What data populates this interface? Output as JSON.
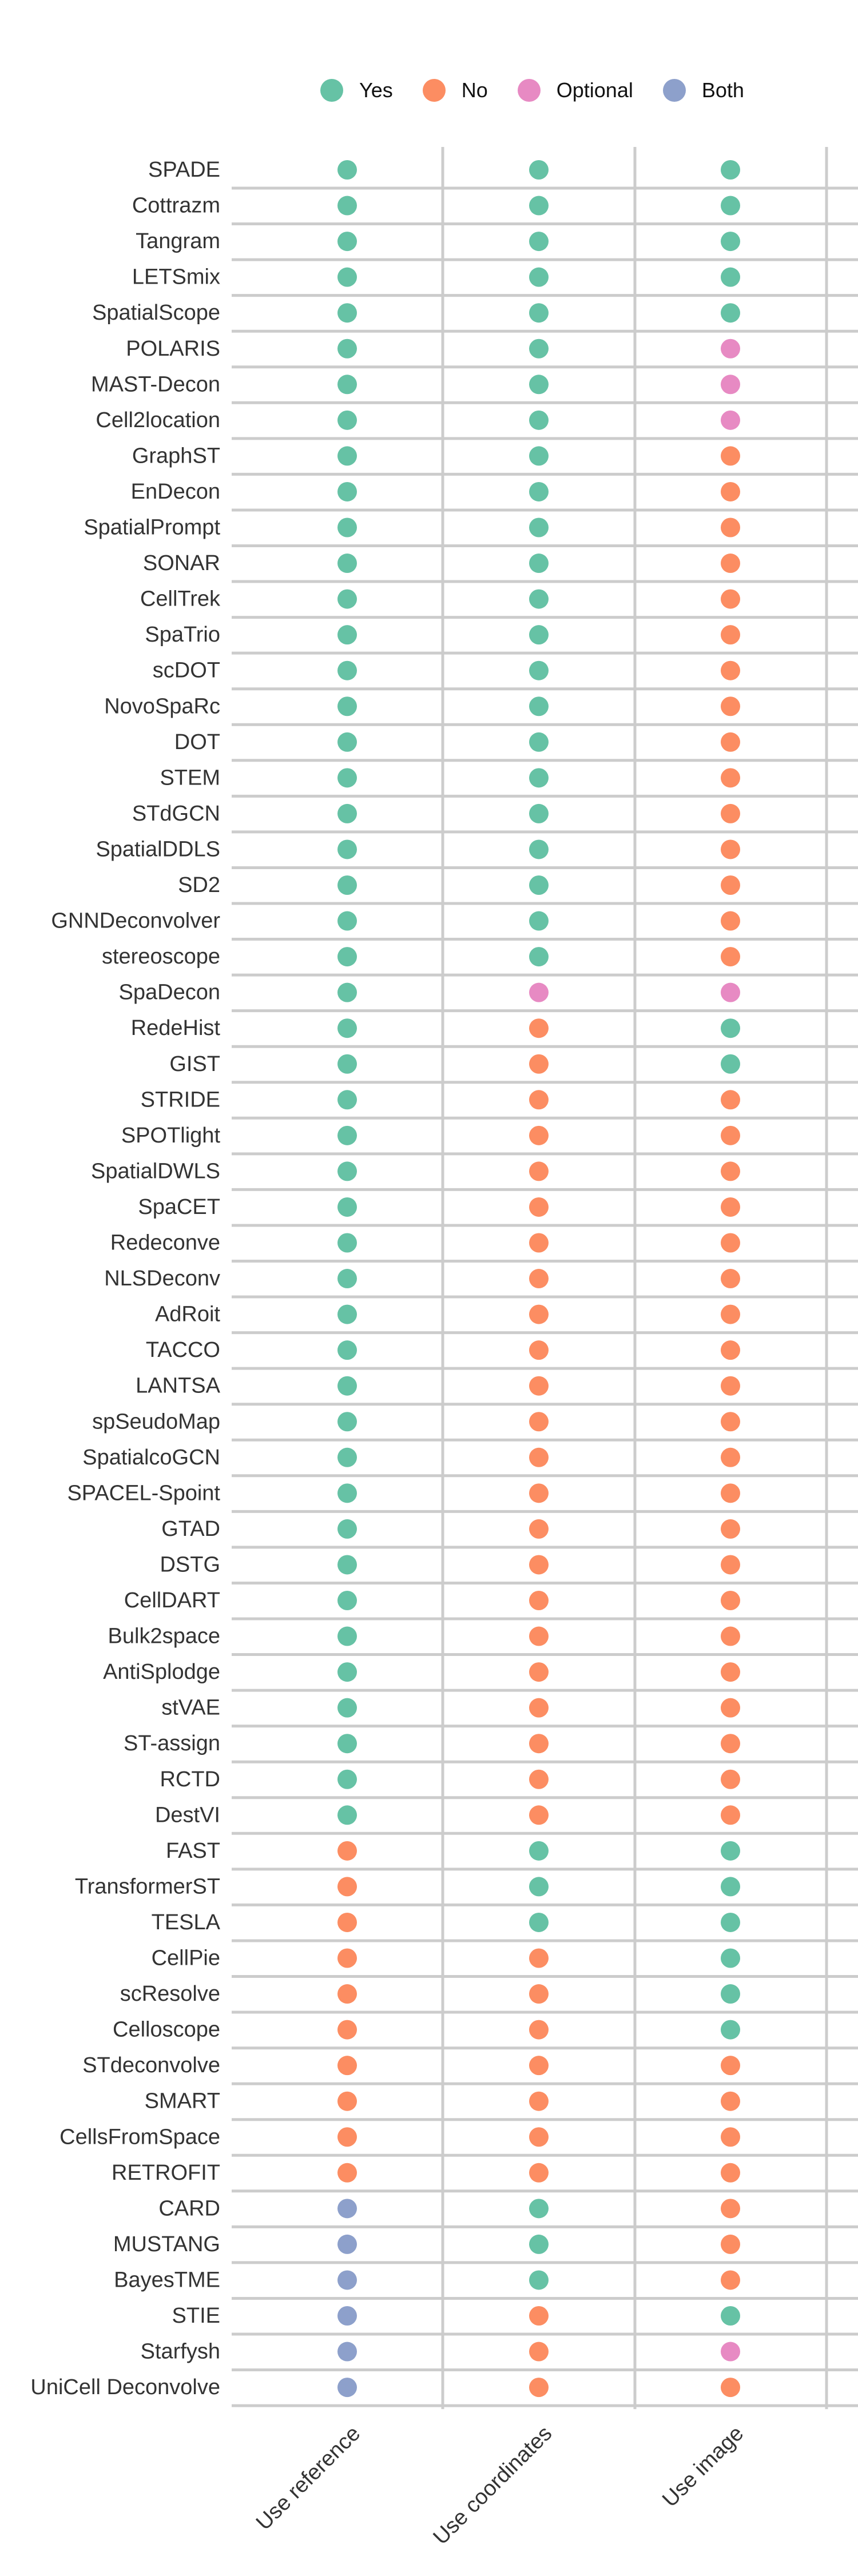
{
  "chart_data": {
    "type": "scatter",
    "x_categories": [
      "Use reference",
      "Use coordinates",
      "Use image"
    ],
    "legend": [
      {
        "key": "Yes",
        "label": "Yes",
        "color": "#66c2a5"
      },
      {
        "key": "No",
        "label": "No",
        "color": "#fc8d62"
      },
      {
        "key": "Optional",
        "label": "Optional",
        "color": "#e78ac3"
      },
      {
        "key": "Both",
        "label": "Both",
        "color": "#8da0cb"
      }
    ],
    "legend_position": "top",
    "grid": "horizontal lines per method, vertical separators between columns",
    "methods": [
      {
        "name": "SPADE",
        "values": [
          "Yes",
          "Yes",
          "Yes"
        ]
      },
      {
        "name": "Cottrazm",
        "values": [
          "Yes",
          "Yes",
          "Yes"
        ]
      },
      {
        "name": "Tangram",
        "values": [
          "Yes",
          "Yes",
          "Yes"
        ]
      },
      {
        "name": "LETSmix",
        "values": [
          "Yes",
          "Yes",
          "Yes"
        ]
      },
      {
        "name": "SpatialScope",
        "values": [
          "Yes",
          "Yes",
          "Yes"
        ]
      },
      {
        "name": "POLARIS",
        "values": [
          "Yes",
          "Yes",
          "Optional"
        ]
      },
      {
        "name": "MAST-Decon",
        "values": [
          "Yes",
          "Yes",
          "Optional"
        ]
      },
      {
        "name": "Cell2location",
        "values": [
          "Yes",
          "Yes",
          "Optional"
        ]
      },
      {
        "name": "GraphST",
        "values": [
          "Yes",
          "Yes",
          "No"
        ]
      },
      {
        "name": "EnDecon",
        "values": [
          "Yes",
          "Yes",
          "No"
        ]
      },
      {
        "name": "SpatialPrompt",
        "values": [
          "Yes",
          "Yes",
          "No"
        ]
      },
      {
        "name": "SONAR",
        "values": [
          "Yes",
          "Yes",
          "No"
        ]
      },
      {
        "name": "CellTrek",
        "values": [
          "Yes",
          "Yes",
          "No"
        ]
      },
      {
        "name": "SpaTrio",
        "values": [
          "Yes",
          "Yes",
          "No"
        ]
      },
      {
        "name": "scDOT",
        "values": [
          "Yes",
          "Yes",
          "No"
        ]
      },
      {
        "name": "NovoSpaRc",
        "values": [
          "Yes",
          "Yes",
          "No"
        ]
      },
      {
        "name": "DOT",
        "values": [
          "Yes",
          "Yes",
          "No"
        ]
      },
      {
        "name": "STEM",
        "values": [
          "Yes",
          "Yes",
          "No"
        ]
      },
      {
        "name": "STdGCN",
        "values": [
          "Yes",
          "Yes",
          "No"
        ]
      },
      {
        "name": "SpatialDDLS",
        "values": [
          "Yes",
          "Yes",
          "No"
        ]
      },
      {
        "name": "SD2",
        "values": [
          "Yes",
          "Yes",
          "No"
        ]
      },
      {
        "name": "GNNDeconvolver",
        "values": [
          "Yes",
          "Yes",
          "No"
        ]
      },
      {
        "name": "stereoscope",
        "values": [
          "Yes",
          "Yes",
          "No"
        ]
      },
      {
        "name": "SpaDecon",
        "values": [
          "Yes",
          "Optional",
          "Optional"
        ]
      },
      {
        "name": "RedeHist",
        "values": [
          "Yes",
          "No",
          "Yes"
        ]
      },
      {
        "name": "GIST",
        "values": [
          "Yes",
          "No",
          "Yes"
        ]
      },
      {
        "name": "STRIDE",
        "values": [
          "Yes",
          "No",
          "No"
        ]
      },
      {
        "name": "SPOTlight",
        "values": [
          "Yes",
          "No",
          "No"
        ]
      },
      {
        "name": "SpatialDWLS",
        "values": [
          "Yes",
          "No",
          "No"
        ]
      },
      {
        "name": "SpaCET",
        "values": [
          "Yes",
          "No",
          "No"
        ]
      },
      {
        "name": "Redeconve",
        "values": [
          "Yes",
          "No",
          "No"
        ]
      },
      {
        "name": "NLSDeconv",
        "values": [
          "Yes",
          "No",
          "No"
        ]
      },
      {
        "name": "AdRoit",
        "values": [
          "Yes",
          "No",
          "No"
        ]
      },
      {
        "name": "TACCO",
        "values": [
          "Yes",
          "No",
          "No"
        ]
      },
      {
        "name": "LANTSA",
        "values": [
          "Yes",
          "No",
          "No"
        ]
      },
      {
        "name": "spSeudoMap",
        "values": [
          "Yes",
          "No",
          "No"
        ]
      },
      {
        "name": "SpatialcoGCN",
        "values": [
          "Yes",
          "No",
          "No"
        ]
      },
      {
        "name": "SPACEL-Spoint",
        "values": [
          "Yes",
          "No",
          "No"
        ]
      },
      {
        "name": "GTAD",
        "values": [
          "Yes",
          "No",
          "No"
        ]
      },
      {
        "name": "DSTG",
        "values": [
          "Yes",
          "No",
          "No"
        ]
      },
      {
        "name": "CellDART",
        "values": [
          "Yes",
          "No",
          "No"
        ]
      },
      {
        "name": "Bulk2space",
        "values": [
          "Yes",
          "No",
          "No"
        ]
      },
      {
        "name": "AntiSplodge",
        "values": [
          "Yes",
          "No",
          "No"
        ]
      },
      {
        "name": "stVAE",
        "values": [
          "Yes",
          "No",
          "No"
        ]
      },
      {
        "name": "ST-assign",
        "values": [
          "Yes",
          "No",
          "No"
        ]
      },
      {
        "name": "RCTD",
        "values": [
          "Yes",
          "No",
          "No"
        ]
      },
      {
        "name": "DestVI",
        "values": [
          "Yes",
          "No",
          "No"
        ]
      },
      {
        "name": "FAST",
        "values": [
          "No",
          "Yes",
          "Yes"
        ]
      },
      {
        "name": "TransformerST",
        "values": [
          "No",
          "Yes",
          "Yes"
        ]
      },
      {
        "name": "TESLA",
        "values": [
          "No",
          "Yes",
          "Yes"
        ]
      },
      {
        "name": "CellPie",
        "values": [
          "No",
          "No",
          "Yes"
        ]
      },
      {
        "name": "scResolve",
        "values": [
          "No",
          "No",
          "Yes"
        ]
      },
      {
        "name": "Celloscope",
        "values": [
          "No",
          "No",
          "Yes"
        ]
      },
      {
        "name": "STdeconvolve",
        "values": [
          "No",
          "No",
          "No"
        ]
      },
      {
        "name": "SMART",
        "values": [
          "No",
          "No",
          "No"
        ]
      },
      {
        "name": "CellsFromSpace",
        "values": [
          "No",
          "No",
          "No"
        ]
      },
      {
        "name": "RETROFIT",
        "values": [
          "No",
          "No",
          "No"
        ]
      },
      {
        "name": "CARD",
        "values": [
          "Both",
          "Yes",
          "No"
        ]
      },
      {
        "name": "MUSTANG",
        "values": [
          "Both",
          "Yes",
          "No"
        ]
      },
      {
        "name": "BayesTME",
        "values": [
          "Both",
          "Yes",
          "No"
        ]
      },
      {
        "name": "STIE",
        "values": [
          "Both",
          "No",
          "Yes"
        ]
      },
      {
        "name": "Starfysh",
        "values": [
          "Both",
          "No",
          "Optional"
        ]
      },
      {
        "name": "UniCell Deconvolve",
        "values": [
          "Both",
          "No",
          "No"
        ]
      }
    ]
  }
}
